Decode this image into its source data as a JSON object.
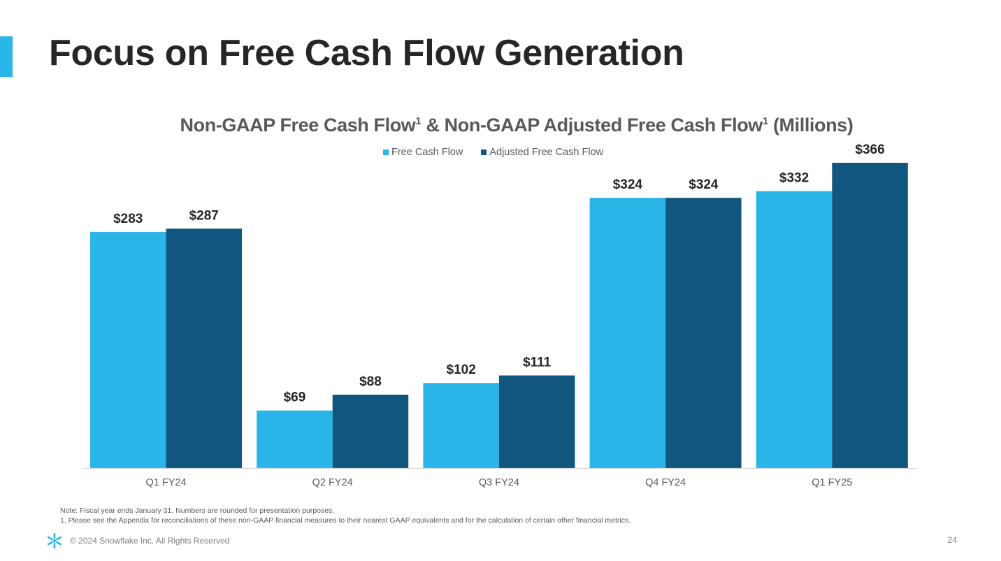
{
  "slide": {
    "title": "Focus on Free Cash Flow Generation",
    "accent_color": "#29b5e8"
  },
  "chart_data": {
    "type": "bar",
    "title_parts": {
      "part1": "Non-GAAP Free Cash Flow",
      "sup1": "1",
      "part2": " & Non-GAAP Adjusted Free Cash Flow",
      "sup2": "1",
      "part3": " (Millions)"
    },
    "categories": [
      "Q1 FY24",
      "Q2 FY24",
      "Q3 FY24",
      "Q4 FY24",
      "Q1 FY25"
    ],
    "series": [
      {
        "name": "Free Cash Flow",
        "color": "#29b5e8",
        "values": [
          283,
          69,
          102,
          324,
          332
        ],
        "labels": [
          "$283",
          "$69",
          "$102",
          "$324",
          "$332"
        ]
      },
      {
        "name": "Adjusted Free Cash Flow",
        "color": "#11567f",
        "values": [
          287,
          88,
          111,
          324,
          366
        ],
        "labels": [
          "$287",
          "$88",
          "$111",
          "$324",
          "$366"
        ]
      }
    ],
    "ylim": [
      0,
      366
    ],
    "grid": false,
    "legend_position": "top-center"
  },
  "notes": {
    "line1": "Note: Fiscal year ends January 31. Numbers are rounded for presentation purposes.",
    "line2": "1.  Please see the Appendix for reconciliations of these non-GAAP financial measures to their nearest GAAP equivalents and for the calculation of certain other financial metrics."
  },
  "footer": {
    "copyright": "© 2024 Snowflake Inc. All Rights Reserved",
    "page_number": "24",
    "logo_icon": "snowflake-logo-icon"
  }
}
